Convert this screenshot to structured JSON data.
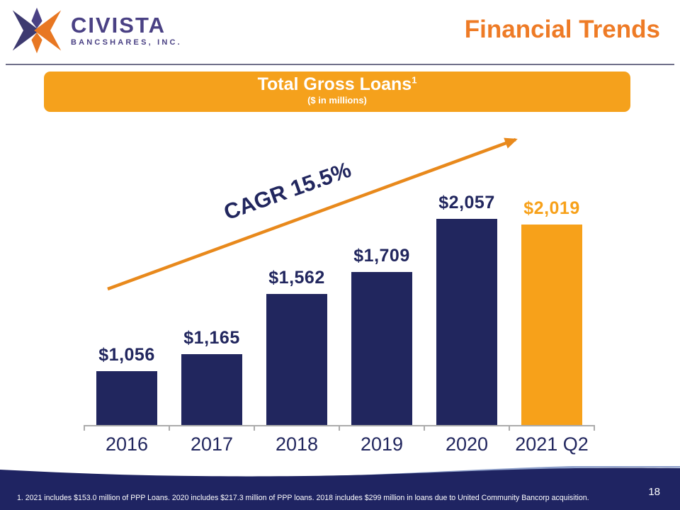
{
  "header": {
    "logo": {
      "name": "CIVISTA",
      "subtitle": "BANCSHARES, INC."
    },
    "title": "Financial Trends"
  },
  "banner": {
    "title": "Total Gross Loans",
    "superscript": "1",
    "subtitle": "($ in millions)"
  },
  "chart_data": {
    "type": "bar",
    "title": "Total Gross Loans",
    "subtitle": "($ in millions)",
    "categories": [
      "2016",
      "2017",
      "2018",
      "2019",
      "2020",
      "2021 Q2"
    ],
    "values": [
      1056,
      1165,
      1562,
      1709,
      2057,
      2019
    ],
    "value_labels": [
      "$1,056",
      "$1,165",
      "$1,562",
      "$1,709",
      "$2,057",
      "$2,019"
    ],
    "bar_colors": [
      "#21265E",
      "#21265E",
      "#21265E",
      "#21265E",
      "#21265E",
      "#F7A11A"
    ],
    "label_colors": [
      "#21265E",
      "#21265E",
      "#21265E",
      "#21265E",
      "#21265E",
      "#F7A11A"
    ],
    "annotation": "CAGR 15.5%",
    "xlabel": "",
    "ylabel": "$ in millions",
    "ylim": [
      700,
      2100
    ],
    "grid": false,
    "legend": false
  },
  "footer": {
    "footnote": "1. 2021 includes $153.0 million of PPP Loans. 2020 includes $217.3 million of PPP loans. 2018 includes $299 million in loans due to United Community Bancorp acquisition.",
    "page_number": "18"
  },
  "colors": {
    "navy": "#21265E",
    "banner_orange": "#F5A11C",
    "title_orange": "#EE7B26",
    "bar_orange": "#F7A11A",
    "arrow_orange": "#E8891C",
    "logo_purple": "#4A4184"
  }
}
